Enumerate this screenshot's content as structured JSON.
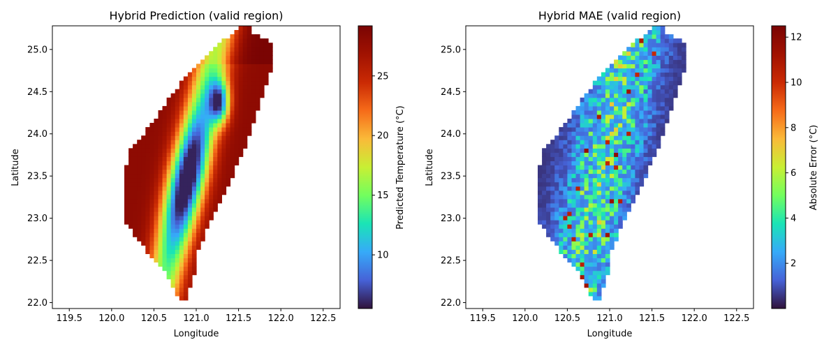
{
  "chart_data": [
    {
      "type": "heatmap",
      "title": "Hybrid Prediction (valid region)",
      "xlabel": "Longitude",
      "ylabel": "Latitude",
      "xlim": [
        119.3,
        122.7
      ],
      "ylim": [
        21.93,
        25.28
      ],
      "xticks": [
        "119.5",
        "120.0",
        "120.5",
        "121.0",
        "121.5",
        "122.0",
        "122.5"
      ],
      "yticks": [
        "22.0",
        "22.5",
        "23.0",
        "23.5",
        "24.0",
        "24.5",
        "25.0"
      ],
      "colorbar": {
        "label": "Predicted Temperature (°C)",
        "min": 5.5,
        "max": 29.2,
        "ticks": [
          "10",
          "15",
          "20",
          "25"
        ],
        "colormap": "turbo"
      },
      "grid": false,
      "field": "temperature",
      "description_of_values": "Warm coastal lowlands (~25-29 °C), cooling along the central mountain ridge to a minimum near 5.5 °C around 121.0E, 23.4N"
    },
    {
      "type": "heatmap",
      "title": "Hybrid MAE (valid region)",
      "xlabel": "Longitude",
      "ylabel": "Latitude",
      "xlim": [
        119.3,
        122.7
      ],
      "ylim": [
        21.93,
        25.28
      ],
      "xticks": [
        "119.5",
        "120.0",
        "120.5",
        "121.0",
        "121.5",
        "122.0",
        "122.5"
      ],
      "yticks": [
        "22.0",
        "22.5",
        "23.0",
        "23.5",
        "24.0",
        "24.5",
        "25.0"
      ],
      "colorbar": {
        "label": "Absolute Error (°C)",
        "min": 0,
        "max": 12.5,
        "ticks": [
          "2",
          "4",
          "6",
          "8",
          "10",
          "12"
        ],
        "colormap": "turbo"
      },
      "grid": false,
      "field": "error"
    }
  ]
}
